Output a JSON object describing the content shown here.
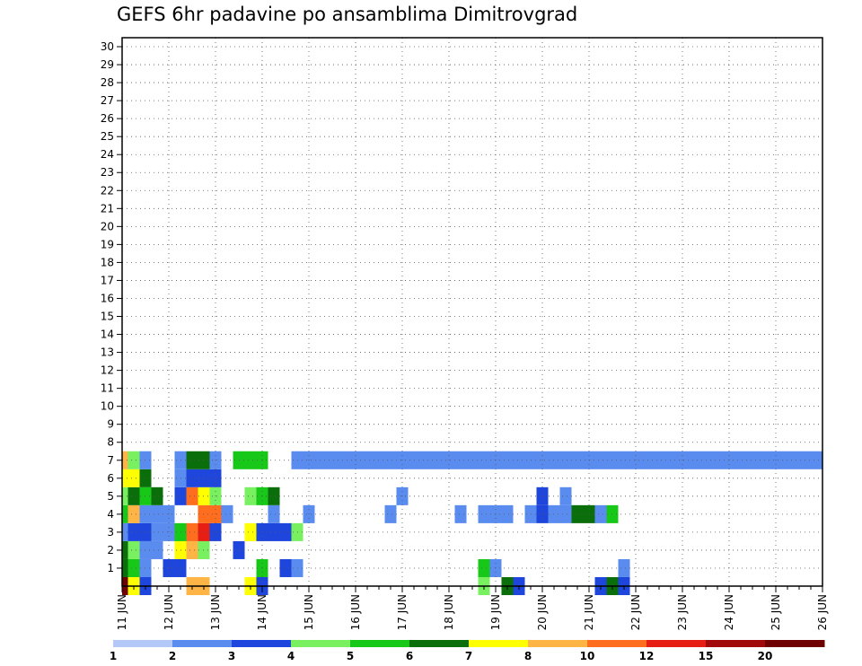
{
  "chart_data": {
    "type": "heatmap",
    "title": "GEFS 6hr padavine po ansamblima Dimitrovgrad",
    "xlabel": "",
    "ylabel": "",
    "x_tick_labels": [
      "11 JUN",
      "12 JUN",
      "13 JUN",
      "14 JUN",
      "15 JUN",
      "16 JUN",
      "17 JUN",
      "18 JUN",
      "19 JUN",
      "20 JUN",
      "21 JUN",
      "22 JUN",
      "23 JUN",
      "24 JUN",
      "25 JUN",
      "26 JUN"
    ],
    "y_tick_labels": [
      "1",
      "2",
      "3",
      "4",
      "5",
      "6",
      "7",
      "8",
      "9",
      "10",
      "11",
      "12",
      "13",
      "14",
      "15",
      "16",
      "17",
      "18",
      "19",
      "20",
      "21",
      "22",
      "23",
      "24",
      "25",
      "26",
      "27",
      "28",
      "29",
      "30"
    ],
    "time_steps": 61,
    "grid": true,
    "legend_placement": "bottom",
    "levels": [
      "1",
      "2",
      "3",
      "4",
      "5",
      "6",
      "7",
      "8",
      "10",
      "12",
      "15",
      "20"
    ],
    "colors": [
      "#b4c8f8",
      "#5a8cf0",
      "#1e46dc",
      "#78f060",
      "#18c818",
      "#0a6e0a",
      "#ffff00",
      "#ffb446",
      "#ff6e1e",
      "#e61e14",
      "#a00a0a",
      "#6e0000"
    ],
    "cells": [
      [
        0,
        0,
        11
      ],
      [
        1,
        0,
        6
      ],
      [
        2,
        0,
        2
      ],
      [
        2,
        1,
        2
      ],
      [
        6,
        0,
        7
      ],
      [
        7,
        0,
        7
      ],
      [
        11,
        0,
        6
      ],
      [
        12,
        0,
        2
      ],
      [
        31,
        0,
        3
      ],
      [
        33,
        0,
        5
      ],
      [
        34,
        0,
        2
      ],
      [
        41,
        0,
        2
      ],
      [
        42,
        0,
        5
      ],
      [
        43,
        0,
        2
      ],
      [
        0,
        1,
        5
      ],
      [
        1,
        1,
        4
      ],
      [
        2,
        1,
        1
      ],
      [
        4,
        1,
        2
      ],
      [
        5,
        1,
        2
      ],
      [
        12,
        1,
        4
      ],
      [
        14,
        1,
        2
      ],
      [
        15,
        1,
        1
      ],
      [
        31,
        1,
        4
      ],
      [
        32,
        1,
        1
      ],
      [
        43,
        1,
        1
      ],
      [
        0,
        2,
        5
      ],
      [
        1,
        2,
        3
      ],
      [
        2,
        2,
        1
      ],
      [
        3,
        2,
        1
      ],
      [
        5,
        2,
        6
      ],
      [
        6,
        2,
        7
      ],
      [
        7,
        2,
        3
      ],
      [
        10,
        2,
        2
      ],
      [
        0,
        3,
        1
      ],
      [
        1,
        3,
        2
      ],
      [
        2,
        3,
        2
      ],
      [
        3,
        3,
        1
      ],
      [
        4,
        3,
        1
      ],
      [
        5,
        3,
        4
      ],
      [
        6,
        3,
        8
      ],
      [
        7,
        3,
        9
      ],
      [
        8,
        3,
        2
      ],
      [
        11,
        3,
        6
      ],
      [
        12,
        3,
        2
      ],
      [
        13,
        3,
        2
      ],
      [
        14,
        3,
        2
      ],
      [
        15,
        3,
        3
      ],
      [
        0,
        4,
        4
      ],
      [
        1,
        4,
        7
      ],
      [
        2,
        4,
        1
      ],
      [
        3,
        4,
        1
      ],
      [
        4,
        4,
        1
      ],
      [
        7,
        4,
        8
      ],
      [
        8,
        4,
        8
      ],
      [
        9,
        4,
        1
      ],
      [
        13,
        4,
        1
      ],
      [
        16,
        4,
        1
      ],
      [
        23,
        4,
        1
      ],
      [
        29,
        4,
        1
      ],
      [
        31,
        4,
        1
      ],
      [
        32,
        4,
        1
      ],
      [
        33,
        4,
        1
      ],
      [
        35,
        4,
        1
      ],
      [
        36,
        4,
        2
      ],
      [
        37,
        4,
        1
      ],
      [
        38,
        4,
        1
      ],
      [
        39,
        4,
        5
      ],
      [
        40,
        4,
        5
      ],
      [
        41,
        4,
        1
      ],
      [
        42,
        4,
        4
      ]
    ],
    "cells_extra": [
      [
        0,
        5,
        3
      ],
      [
        1,
        5,
        5
      ],
      [
        2,
        5,
        4
      ],
      [
        3,
        5,
        5
      ],
      [
        5,
        5,
        2
      ],
      [
        6,
        5,
        8
      ],
      [
        7,
        5,
        6
      ],
      [
        8,
        5,
        3
      ],
      [
        11,
        5,
        3
      ],
      [
        12,
        5,
        4
      ],
      [
        13,
        5,
        5
      ],
      [
        24,
        5,
        1
      ],
      [
        36,
        5,
        2
      ],
      [
        38,
        5,
        1
      ],
      [
        0,
        6,
        6
      ],
      [
        1,
        6,
        6
      ],
      [
        2,
        6,
        5
      ],
      [
        5,
        6,
        1
      ],
      [
        6,
        6,
        2
      ],
      [
        7,
        6,
        2
      ],
      [
        8,
        6,
        2
      ],
      [
        0,
        7,
        7
      ],
      [
        1,
        7,
        3
      ],
      [
        2,
        7,
        1
      ],
      [
        5,
        7,
        1
      ],
      [
        6,
        7,
        5
      ],
      [
        7,
        7,
        5
      ],
      [
        8,
        7,
        1
      ],
      [
        10,
        7,
        4
      ],
      [
        11,
        7,
        4
      ],
      [
        12,
        7,
        4
      ],
      [
        15,
        7,
        1
      ],
      [
        16,
        7,
        1
      ],
      [
        17,
        7,
        1
      ],
      [
        18,
        7,
        1
      ],
      [
        19,
        7,
        1
      ],
      [
        20,
        7,
        1
      ],
      [
        21,
        7,
        1
      ],
      [
        22,
        7,
        1
      ],
      [
        23,
        7,
        1
      ],
      [
        24,
        7,
        1
      ],
      [
        25,
        7,
        1
      ],
      [
        26,
        7,
        1
      ],
      [
        27,
        7,
        1
      ],
      [
        28,
        7,
        1
      ],
      [
        29,
        7,
        1
      ],
      [
        30,
        7,
        1
      ],
      [
        31,
        7,
        1
      ],
      [
        32,
        7,
        1
      ],
      [
        33,
        7,
        1
      ],
      [
        34,
        7,
        1
      ],
      [
        35,
        7,
        1
      ],
      [
        36,
        7,
        1
      ],
      [
        37,
        7,
        1
      ],
      [
        38,
        7,
        1
      ],
      [
        39,
        7,
        1
      ],
      [
        40,
        7,
        1
      ],
      [
        41,
        7,
        1
      ],
      [
        42,
        7,
        1
      ],
      [
        43,
        7,
        1
      ],
      [
        44,
        7,
        1
      ],
      [
        45,
        7,
        1
      ],
      [
        46,
        7,
        1
      ],
      [
        47,
        7,
        1
      ],
      [
        48,
        7,
        1
      ],
      [
        49,
        7,
        1
      ],
      [
        50,
        7,
        1
      ],
      [
        51,
        7,
        1
      ],
      [
        52,
        7,
        1
      ],
      [
        53,
        7,
        1
      ],
      [
        54,
        7,
        1
      ],
      [
        55,
        7,
        1
      ],
      [
        56,
        7,
        1
      ],
      [
        57,
        7,
        1
      ],
      [
        58,
        7,
        1
      ],
      [
        59,
        7,
        1
      ],
      [
        60,
        7,
        1
      ]
    ]
  }
}
